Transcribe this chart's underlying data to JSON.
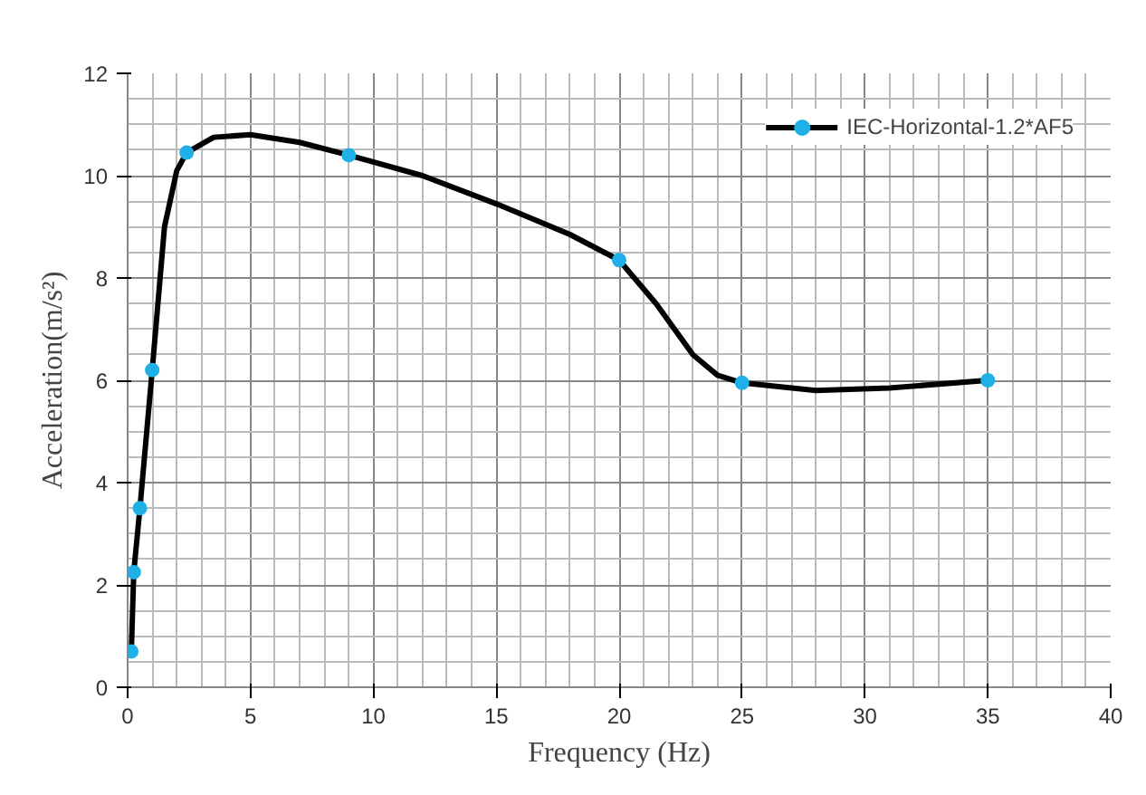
{
  "chart_data": {
    "type": "line",
    "xlabel": "Frequency (Hz)",
    "ylabel": "Acceleration(m/s²)",
    "xlim": [
      0,
      40
    ],
    "xticks": [
      0,
      5,
      10,
      15,
      20,
      25,
      30,
      35,
      40
    ],
    "ylim": [
      0,
      12
    ],
    "yticks": [
      0,
      2,
      4,
      6,
      8,
      10,
      12
    ],
    "grid": true,
    "legend": "top right",
    "line_style": "solid",
    "series": [
      {
        "name": "IEC-Horizontal-1.2*AF5",
        "color": "#000000",
        "marker": "none",
        "x": [
          0.15,
          0.25,
          0.5,
          1,
          1.5,
          2,
          2.4,
          3.5,
          5,
          7,
          9,
          12,
          15,
          18,
          20,
          21.5,
          23,
          24,
          25,
          28,
          31,
          35
        ],
        "values": [
          0.7,
          2.25,
          3.5,
          6.2,
          9.0,
          10.1,
          10.45,
          10.75,
          10.8,
          10.65,
          10.4,
          10.0,
          9.45,
          8.85,
          8.35,
          7.5,
          6.5,
          6.1,
          5.95,
          5.8,
          5.85,
          6
        ]
      },
      {
        "type": "scatter",
        "color": "#1fb0e8",
        "marker": "circle",
        "x": [
          0.15,
          0.25,
          0.5,
          1,
          2.4,
          9,
          20,
          25,
          35
        ],
        "values": [
          0.7,
          2.25,
          3.5,
          6.2,
          10.45,
          10.4,
          8.35,
          5.95,
          6
        ]
      }
    ]
  }
}
